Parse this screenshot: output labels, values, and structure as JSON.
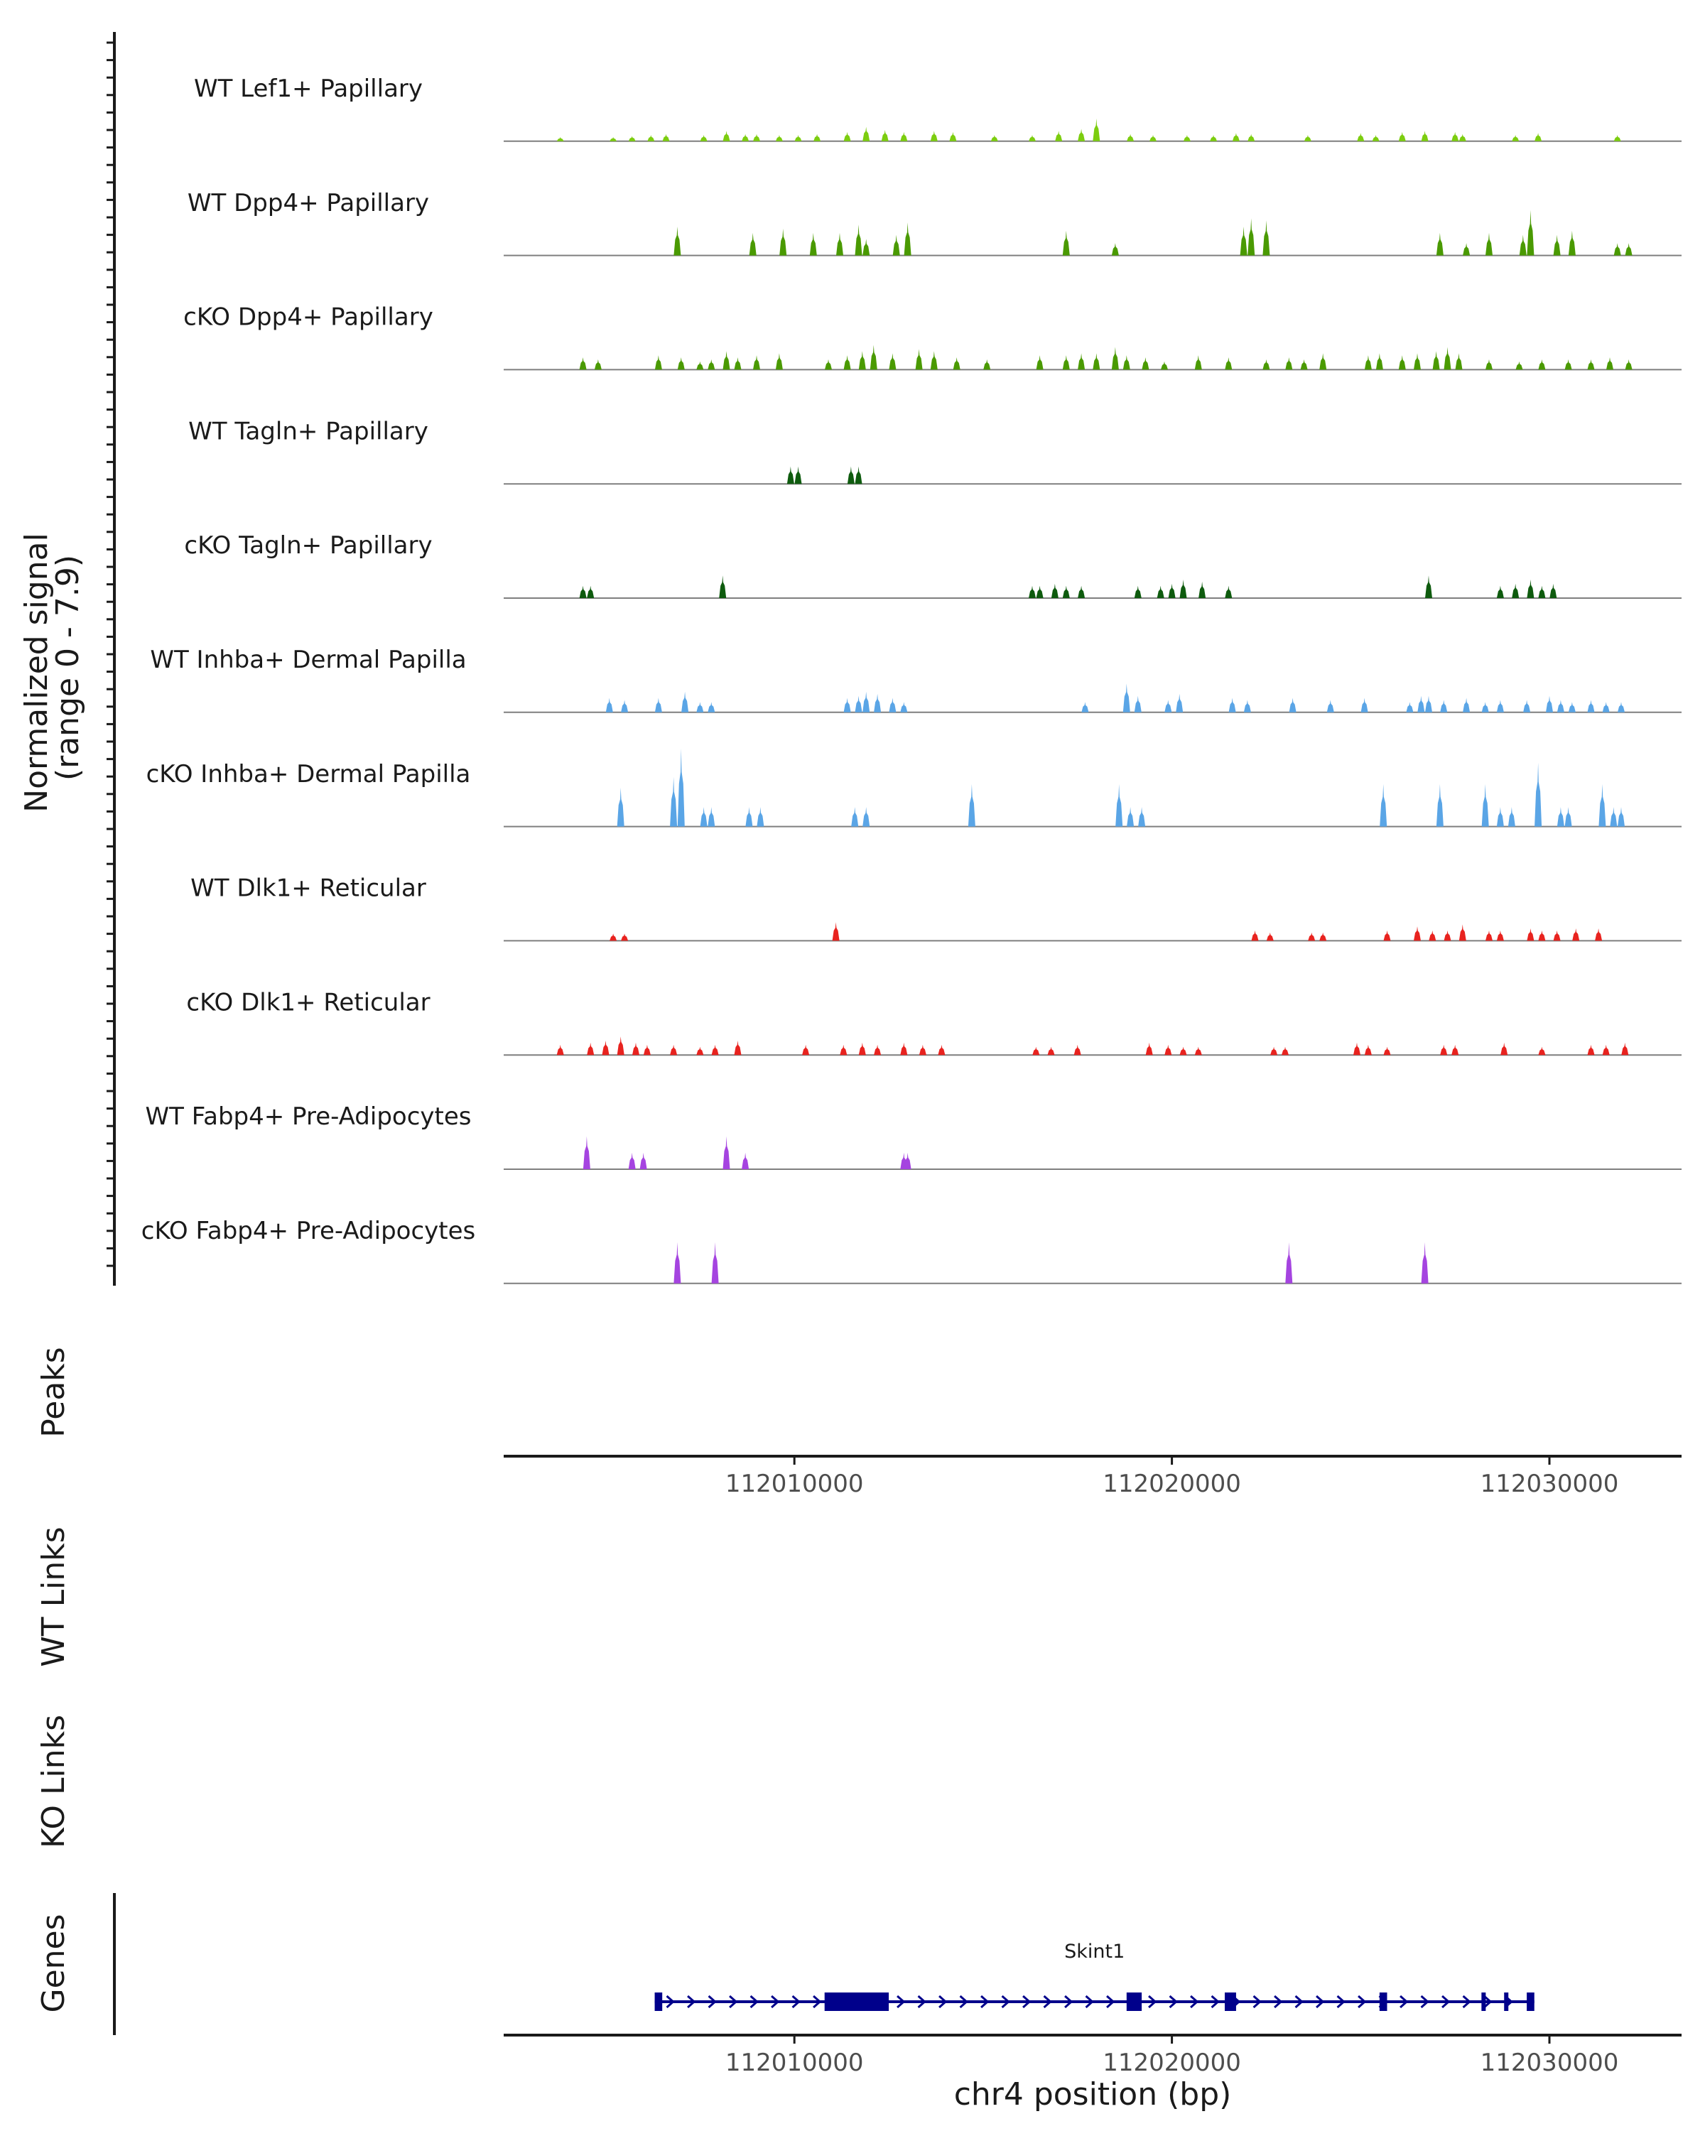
{
  "chart_data": {
    "type": "area",
    "title": "",
    "region": {
      "chrom": "chr4",
      "start": 112002300,
      "end": 112033500
    },
    "signal_ylabel": [
      "Normalized signal",
      "(range 0 - 7.9)"
    ],
    "signal_range": [
      0,
      7.9
    ],
    "xlabel": "chr4 position (bp)",
    "xticks": [
      112010000,
      112020000,
      112030000
    ],
    "xtick_labels": [
      "112010000",
      "112020000",
      "112030000"
    ],
    "tracks": [
      {
        "name": "WT Lef1+ Papillary",
        "color": "#7ccd0f",
        "peaks": [
          [
            112003800,
            0.2
          ],
          [
            112005200,
            0.2
          ],
          [
            112005700,
            0.25
          ],
          [
            112006200,
            0.3
          ],
          [
            112006600,
            0.35
          ],
          [
            112007600,
            0.3
          ],
          [
            112008200,
            0.5
          ],
          [
            112008700,
            0.35
          ],
          [
            112009000,
            0.35
          ],
          [
            112009600,
            0.3
          ],
          [
            112010100,
            0.3
          ],
          [
            112010600,
            0.35
          ],
          [
            112011400,
            0.45
          ],
          [
            112011900,
            0.7
          ],
          [
            112012400,
            0.55
          ],
          [
            112012900,
            0.45
          ],
          [
            112013700,
            0.5
          ],
          [
            112014200,
            0.45
          ],
          [
            112015300,
            0.3
          ],
          [
            112016300,
            0.3
          ],
          [
            112017000,
            0.5
          ],
          [
            112017600,
            0.6
          ],
          [
            112018000,
            1.1
          ],
          [
            112018900,
            0.35
          ],
          [
            112019500,
            0.3
          ],
          [
            112020400,
            0.3
          ],
          [
            112021100,
            0.3
          ],
          [
            112021700,
            0.4
          ],
          [
            112022100,
            0.35
          ],
          [
            112023600,
            0.3
          ],
          [
            112025000,
            0.4
          ],
          [
            112025400,
            0.3
          ],
          [
            112026100,
            0.45
          ],
          [
            112026700,
            0.5
          ],
          [
            112027500,
            0.45
          ],
          [
            112027700,
            0.35
          ],
          [
            112029100,
            0.3
          ],
          [
            112029700,
            0.4
          ],
          [
            112031800,
            0.3
          ]
        ]
      },
      {
        "name": "WT Dpp4+ Papillary",
        "color": "#4a9a02",
        "peaks": [
          [
            112006900,
            1.4
          ],
          [
            112008900,
            1.1
          ],
          [
            112009700,
            1.3
          ],
          [
            112010500,
            1.1
          ],
          [
            112011200,
            1.1
          ],
          [
            112011700,
            1.5
          ],
          [
            112011900,
            0.8
          ],
          [
            112012700,
            1.0
          ],
          [
            112013000,
            1.6
          ],
          [
            112017200,
            1.2
          ],
          [
            112018500,
            0.6
          ],
          [
            112021900,
            1.4
          ],
          [
            112022100,
            1.8
          ],
          [
            112022500,
            1.7
          ],
          [
            112027100,
            1.1
          ],
          [
            112027800,
            0.6
          ],
          [
            112028400,
            1.1
          ],
          [
            112029300,
            1.0
          ],
          [
            112029500,
            2.2
          ],
          [
            112030200,
            1.0
          ],
          [
            112030600,
            1.2
          ],
          [
            112031800,
            0.6
          ],
          [
            112032100,
            0.6
          ]
        ]
      },
      {
        "name": "cKO Dpp4+ Papillary",
        "color": "#4a9a02",
        "peaks": [
          [
            112004400,
            0.6
          ],
          [
            112004800,
            0.5
          ],
          [
            112006400,
            0.7
          ],
          [
            112007000,
            0.6
          ],
          [
            112007500,
            0.4
          ],
          [
            112007800,
            0.5
          ],
          [
            112008200,
            0.9
          ],
          [
            112008500,
            0.6
          ],
          [
            112009000,
            0.7
          ],
          [
            112009600,
            0.8
          ],
          [
            112010900,
            0.5
          ],
          [
            112011400,
            0.7
          ],
          [
            112011800,
            0.9
          ],
          [
            112012100,
            1.2
          ],
          [
            112012600,
            0.8
          ],
          [
            112013300,
            1.0
          ],
          [
            112013700,
            0.9
          ],
          [
            112014300,
            0.6
          ],
          [
            112015100,
            0.5
          ],
          [
            112016500,
            0.7
          ],
          [
            112017200,
            0.7
          ],
          [
            112017600,
            0.8
          ],
          [
            112018000,
            0.8
          ],
          [
            112018500,
            1.1
          ],
          [
            112018800,
            0.7
          ],
          [
            112019300,
            0.6
          ],
          [
            112019800,
            0.4
          ],
          [
            112020700,
            0.7
          ],
          [
            112021500,
            0.6
          ],
          [
            112022500,
            0.5
          ],
          [
            112023100,
            0.6
          ],
          [
            112023500,
            0.5
          ],
          [
            112024000,
            0.8
          ],
          [
            112025200,
            0.7
          ],
          [
            112025500,
            0.8
          ],
          [
            112026100,
            0.7
          ],
          [
            112026500,
            0.8
          ],
          [
            112027000,
            0.9
          ],
          [
            112027300,
            1.1
          ],
          [
            112027600,
            0.8
          ],
          [
            112028400,
            0.5
          ],
          [
            112029200,
            0.4
          ],
          [
            112029800,
            0.5
          ],
          [
            112030500,
            0.5
          ],
          [
            112031100,
            0.5
          ],
          [
            112031600,
            0.6
          ],
          [
            112032100,
            0.5
          ]
        ]
      },
      {
        "name": "WT Tagln+ Papillary",
        "color": "#0e5b0e",
        "peaks": [
          [
            112009900,
            0.85
          ],
          [
            112010100,
            0.85
          ],
          [
            112011500,
            0.85
          ],
          [
            112011700,
            0.85
          ]
        ]
      },
      {
        "name": "cKO Tagln+ Papillary",
        "color": "#0e5b0e",
        "peaks": [
          [
            112004400,
            0.6
          ],
          [
            112004600,
            0.6
          ],
          [
            112008100,
            1.1
          ],
          [
            112016300,
            0.6
          ],
          [
            112016500,
            0.6
          ],
          [
            112016900,
            0.7
          ],
          [
            112017200,
            0.6
          ],
          [
            112017600,
            0.6
          ],
          [
            112019100,
            0.6
          ],
          [
            112019700,
            0.6
          ],
          [
            112020000,
            0.7
          ],
          [
            112020300,
            0.9
          ],
          [
            112020800,
            0.8
          ],
          [
            112021500,
            0.6
          ],
          [
            112026800,
            1.1
          ],
          [
            112028700,
            0.6
          ],
          [
            112029100,
            0.7
          ],
          [
            112029500,
            0.9
          ],
          [
            112029800,
            0.6
          ],
          [
            112030100,
            0.7
          ]
        ]
      },
      {
        "name": "WT Inhba+ Dermal Papilla",
        "color": "#5aa5e6",
        "peaks": [
          [
            112005100,
            0.7
          ],
          [
            112005500,
            0.6
          ],
          [
            112006400,
            0.7
          ],
          [
            112007100,
            1.0
          ],
          [
            112007500,
            0.5
          ],
          [
            112007800,
            0.5
          ],
          [
            112011400,
            0.7
          ],
          [
            112011700,
            0.8
          ],
          [
            112011900,
            1.0
          ],
          [
            112012200,
            0.9
          ],
          [
            112012600,
            0.7
          ],
          [
            112012900,
            0.5
          ],
          [
            112017700,
            0.5
          ],
          [
            112018800,
            1.4
          ],
          [
            112019100,
            0.8
          ],
          [
            112019900,
            0.6
          ],
          [
            112020200,
            0.9
          ],
          [
            112021600,
            0.7
          ],
          [
            112022000,
            0.6
          ],
          [
            112023200,
            0.7
          ],
          [
            112024200,
            0.6
          ],
          [
            112025100,
            0.7
          ],
          [
            112026300,
            0.5
          ],
          [
            112026600,
            0.8
          ],
          [
            112026800,
            0.8
          ],
          [
            112027200,
            0.6
          ],
          [
            112027800,
            0.7
          ],
          [
            112028300,
            0.5
          ],
          [
            112028700,
            0.6
          ],
          [
            112029400,
            0.6
          ],
          [
            112030000,
            0.8
          ],
          [
            112030300,
            0.6
          ],
          [
            112030600,
            0.5
          ],
          [
            112031100,
            0.6
          ],
          [
            112031500,
            0.5
          ],
          [
            112031900,
            0.5
          ]
        ]
      },
      {
        "name": "cKO Inhba+ Dermal Papilla",
        "color": "#5aa5e6",
        "peaks": [
          [
            112005400,
            2.2
          ],
          [
            112006800,
            2.8
          ],
          [
            112007000,
            5.9
          ],
          [
            112007600,
            1.1
          ],
          [
            112007800,
            1.1
          ],
          [
            112008800,
            1.1
          ],
          [
            112009100,
            1.1
          ],
          [
            112011600,
            1.1
          ],
          [
            112011900,
            1.1
          ],
          [
            112014700,
            2.4
          ],
          [
            112018600,
            2.4
          ],
          [
            112018900,
            1.1
          ],
          [
            112019200,
            1.1
          ],
          [
            112025600,
            2.4
          ],
          [
            112027100,
            2.4
          ],
          [
            112028300,
            2.4
          ],
          [
            112028700,
            1.1
          ],
          [
            112029000,
            1.1
          ],
          [
            112029700,
            3.6
          ],
          [
            112030300,
            1.1
          ],
          [
            112030500,
            1.1
          ],
          [
            112031400,
            2.4
          ],
          [
            112031700,
            1.1
          ],
          [
            112031900,
            1.1
          ]
        ]
      },
      {
        "name": "WT Dlk1+ Reticular",
        "color": "#e8231f",
        "peaks": [
          [
            112005200,
            0.35
          ],
          [
            112005500,
            0.35
          ],
          [
            112011100,
            0.9
          ],
          [
            112022200,
            0.5
          ],
          [
            112022600,
            0.4
          ],
          [
            112023700,
            0.4
          ],
          [
            112024000,
            0.4
          ],
          [
            112025700,
            0.5
          ],
          [
            112026500,
            0.7
          ],
          [
            112026900,
            0.5
          ],
          [
            112027300,
            0.5
          ],
          [
            112027700,
            0.8
          ],
          [
            112028400,
            0.5
          ],
          [
            112028700,
            0.5
          ],
          [
            112029500,
            0.6
          ],
          [
            112029800,
            0.5
          ],
          [
            112030200,
            0.5
          ],
          [
            112030700,
            0.6
          ],
          [
            112031300,
            0.6
          ]
        ]
      },
      {
        "name": "cKO Dlk1+ Reticular",
        "color": "#e8231f",
        "peaks": [
          [
            112003800,
            0.5
          ],
          [
            112004600,
            0.6
          ],
          [
            112005000,
            0.7
          ],
          [
            112005400,
            0.9
          ],
          [
            112005800,
            0.6
          ],
          [
            112006100,
            0.5
          ],
          [
            112006800,
            0.5
          ],
          [
            112007500,
            0.4
          ],
          [
            112007900,
            0.5
          ],
          [
            112008500,
            0.7
          ],
          [
            112010300,
            0.5
          ],
          [
            112011300,
            0.5
          ],
          [
            112011800,
            0.6
          ],
          [
            112012200,
            0.5
          ],
          [
            112012900,
            0.6
          ],
          [
            112013400,
            0.5
          ],
          [
            112013900,
            0.5
          ],
          [
            112016400,
            0.4
          ],
          [
            112016800,
            0.4
          ],
          [
            112017500,
            0.5
          ],
          [
            112019400,
            0.6
          ],
          [
            112019900,
            0.5
          ],
          [
            112020300,
            0.4
          ],
          [
            112020700,
            0.4
          ],
          [
            112022700,
            0.4
          ],
          [
            112023000,
            0.4
          ],
          [
            112024900,
            0.6
          ],
          [
            112025200,
            0.5
          ],
          [
            112025700,
            0.4
          ],
          [
            112027200,
            0.5
          ],
          [
            112027500,
            0.5
          ],
          [
            112028800,
            0.6
          ],
          [
            112029800,
            0.4
          ],
          [
            112031100,
            0.5
          ],
          [
            112031500,
            0.5
          ],
          [
            112032000,
            0.6
          ]
        ]
      },
      {
        "name": "WT Fabp4+ Pre-Adipocytes",
        "color": "#a544e0",
        "peaks": [
          [
            112004500,
            1.6
          ],
          [
            112005700,
            0.8
          ],
          [
            112006000,
            0.8
          ],
          [
            112008200,
            1.6
          ],
          [
            112008700,
            0.8
          ],
          [
            112012900,
            0.8
          ],
          [
            112013000,
            0.8
          ]
        ]
      },
      {
        "name": "cKO Fabp4+ Pre-Adipocytes",
        "color": "#a544e0",
        "peaks": [
          [
            112006900,
            2.0
          ],
          [
            112007900,
            2.0
          ],
          [
            112023100,
            2.0
          ],
          [
            112026700,
            2.0
          ]
        ]
      }
    ],
    "side_labels": [
      "Peaks",
      "WT Links",
      "KO Links",
      "Genes"
    ],
    "gene": {
      "name": "Skint1",
      "color": "#00008b",
      "start": 112006300,
      "end": 112029600,
      "exons": [
        [
          112006300,
          112006500
        ],
        [
          112010800,
          112012500
        ],
        [
          112018800,
          112019200
        ],
        [
          112021400,
          112021700
        ],
        [
          112025500,
          112025700
        ],
        [
          112028200,
          112028300
        ],
        [
          112028800,
          112028900
        ],
        [
          112029400,
          112029600
        ]
      ]
    }
  }
}
